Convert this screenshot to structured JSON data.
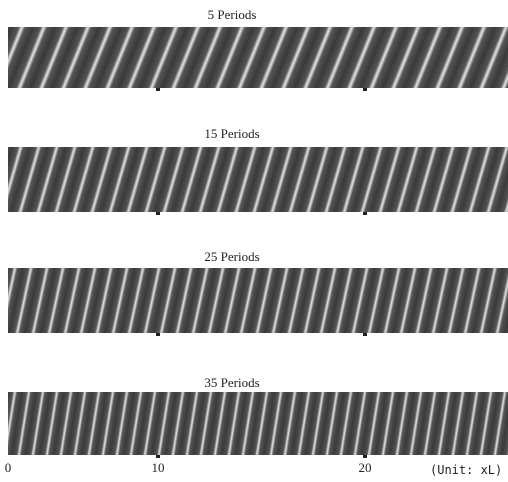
{
  "panels": [
    {
      "title": "5 Periods"
    },
    {
      "title": "15 Periods"
    },
    {
      "title": "25 Periods"
    },
    {
      "title": "35 Periods"
    }
  ],
  "x_axis": {
    "ticks": [
      0,
      10,
      20
    ],
    "unit": "(Unit: xL)"
  }
}
